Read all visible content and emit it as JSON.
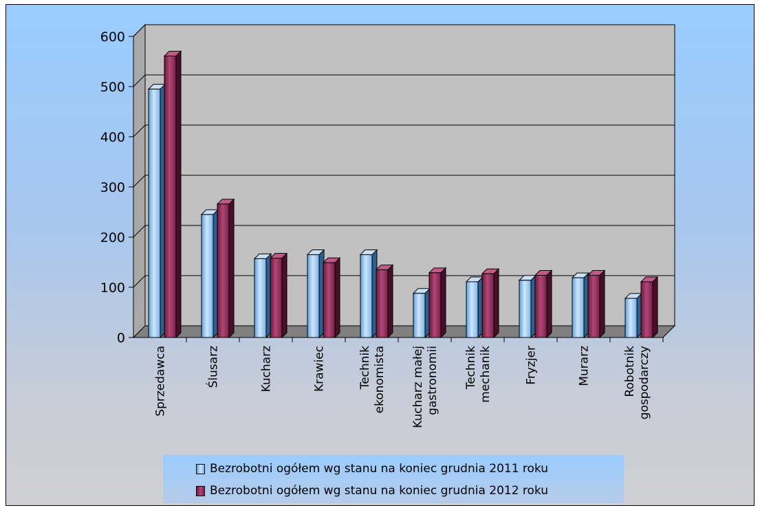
{
  "chart_data": {
    "type": "bar",
    "categories": [
      "Sprzedawca",
      "Ślusarz",
      "Kucharz",
      "Krawiec",
      "Technik|ekonomista",
      "Kucharz małej|gastronomii",
      "Technik|mechanik",
      "Fryzjer",
      "Murarz",
      "Robotnik|gospodarczy"
    ],
    "series": [
      {
        "name": "Bezrobotni ogółem wg stanu na koniec grudnia 2011 roku",
        "values": [
          495,
          245,
          157,
          165,
          165,
          88,
          111,
          114,
          119,
          78
        ],
        "color": "#8fbfe8"
      },
      {
        "name": "Bezrobotni ogółem wg stanu na koniec grudnia 2012 roku",
        "values": [
          561,
          266,
          158,
          149,
          135,
          129,
          127,
          124,
          124,
          111
        ],
        "color": "#8b2252"
      }
    ],
    "y_ticks": [
      "0",
      "100",
      "200",
      "300",
      "400",
      "500",
      "600"
    ],
    "ylim": [
      0,
      600
    ],
    "grid": true,
    "legend_position": "bottom"
  }
}
